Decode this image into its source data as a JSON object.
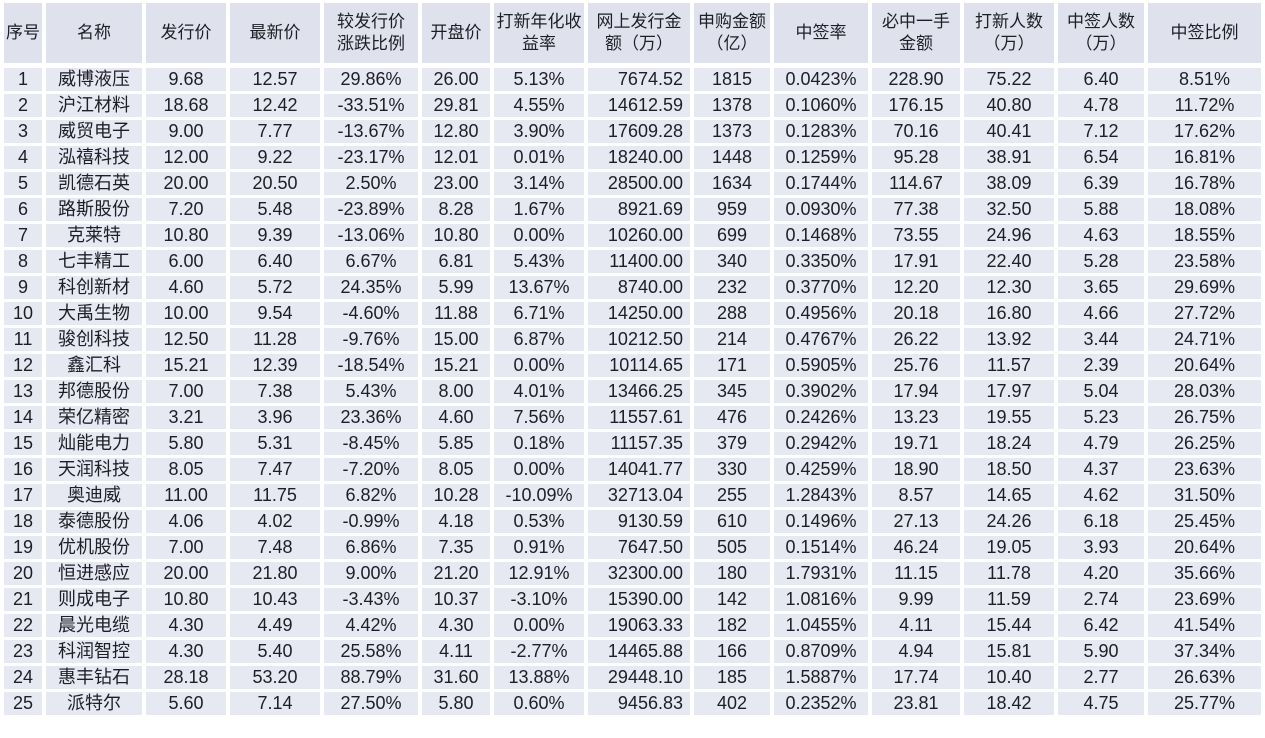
{
  "colors": {
    "cell_bg": "#e6e8f2",
    "header_bg": "#dfe1ec",
    "grid": "#ffffff",
    "text": "#1e1e26"
  },
  "table": {
    "columns": [
      {
        "key": "index",
        "label": "序号",
        "align": "center"
      },
      {
        "key": "name",
        "label": "名称",
        "align": "center"
      },
      {
        "key": "issue-price",
        "label": "发行价",
        "align": "center"
      },
      {
        "key": "latest-price",
        "label": "最新价",
        "align": "center"
      },
      {
        "key": "change-vs-issue",
        "label": "较发行价\n涨跌比例",
        "align": "center"
      },
      {
        "key": "open-price",
        "label": "开盘价",
        "align": "center"
      },
      {
        "key": "annualized-return",
        "label": "打新年化收\n益率",
        "align": "center"
      },
      {
        "key": "online-issue-amount",
        "label": "网上发行金\n额（万）",
        "align": "right"
      },
      {
        "key": "subscription-amount",
        "label": "申购金额\n（亿）",
        "align": "center"
      },
      {
        "key": "winning-rate",
        "label": "中签率",
        "align": "center"
      },
      {
        "key": "sure-win-amount",
        "label": "必中一手\n金额",
        "align": "center"
      },
      {
        "key": "participants",
        "label": "打新人数\n（万）",
        "align": "center"
      },
      {
        "key": "winners",
        "label": "中签人数\n（万）",
        "align": "center"
      },
      {
        "key": "winning-ratio",
        "label": "中签比例",
        "align": "center"
      }
    ],
    "rows": [
      [
        "1",
        "威博液压",
        "9.68",
        "12.57",
        "29.86%",
        "26.00",
        "5.13%",
        "7674.52",
        "1815",
        "0.0423%",
        "228.90",
        "75.22",
        "6.40",
        "8.51%"
      ],
      [
        "2",
        "沪江材料",
        "18.68",
        "12.42",
        "-33.51%",
        "29.81",
        "4.55%",
        "14612.59",
        "1378",
        "0.1060%",
        "176.15",
        "40.80",
        "4.78",
        "11.72%"
      ],
      [
        "3",
        "威贸电子",
        "9.00",
        "7.77",
        "-13.67%",
        "12.80",
        "3.90%",
        "17609.28",
        "1373",
        "0.1283%",
        "70.16",
        "40.41",
        "7.12",
        "17.62%"
      ],
      [
        "4",
        "泓禧科技",
        "12.00",
        "9.22",
        "-23.17%",
        "12.01",
        "0.01%",
        "18240.00",
        "1448",
        "0.1259%",
        "95.28",
        "38.91",
        "6.54",
        "16.81%"
      ],
      [
        "5",
        "凯德石英",
        "20.00",
        "20.50",
        "2.50%",
        "23.00",
        "3.14%",
        "28500.00",
        "1634",
        "0.1744%",
        "114.67",
        "38.09",
        "6.39",
        "16.78%"
      ],
      [
        "6",
        "路斯股份",
        "7.20",
        "5.48",
        "-23.89%",
        "8.28",
        "1.67%",
        "8921.69",
        "959",
        "0.0930%",
        "77.38",
        "32.50",
        "5.88",
        "18.08%"
      ],
      [
        "7",
        "克莱特",
        "10.80",
        "9.39",
        "-13.06%",
        "10.80",
        "0.00%",
        "10260.00",
        "699",
        "0.1468%",
        "73.55",
        "24.96",
        "4.63",
        "18.55%"
      ],
      [
        "8",
        "七丰精工",
        "6.00",
        "6.40",
        "6.67%",
        "6.81",
        "5.43%",
        "11400.00",
        "340",
        "0.3350%",
        "17.91",
        "22.40",
        "5.28",
        "23.58%"
      ],
      [
        "9",
        "科创新材",
        "4.60",
        "5.72",
        "24.35%",
        "5.99",
        "13.67%",
        "8740.00",
        "232",
        "0.3770%",
        "12.20",
        "12.30",
        "3.65",
        "29.69%"
      ],
      [
        "10",
        "大禹生物",
        "10.00",
        "9.54",
        "-4.60%",
        "11.88",
        "6.71%",
        "14250.00",
        "288",
        "0.4956%",
        "20.18",
        "16.80",
        "4.66",
        "27.72%"
      ],
      [
        "11",
        "骏创科技",
        "12.50",
        "11.28",
        "-9.76%",
        "15.00",
        "6.87%",
        "10212.50",
        "214",
        "0.4767%",
        "26.22",
        "13.92",
        "3.44",
        "24.71%"
      ],
      [
        "12",
        "鑫汇科",
        "15.21",
        "12.39",
        "-18.54%",
        "15.21",
        "0.00%",
        "10114.65",
        "171",
        "0.5905%",
        "25.76",
        "11.57",
        "2.39",
        "20.64%"
      ],
      [
        "13",
        "邦德股份",
        "7.00",
        "7.38",
        "5.43%",
        "8.00",
        "4.01%",
        "13466.25",
        "345",
        "0.3902%",
        "17.94",
        "17.97",
        "5.04",
        "28.03%"
      ],
      [
        "14",
        "荣亿精密",
        "3.21",
        "3.96",
        "23.36%",
        "4.60",
        "7.56%",
        "11557.61",
        "476",
        "0.2426%",
        "13.23",
        "19.55",
        "5.23",
        "26.75%"
      ],
      [
        "15",
        "灿能电力",
        "5.80",
        "5.31",
        "-8.45%",
        "5.85",
        "0.18%",
        "11157.35",
        "379",
        "0.2942%",
        "19.71",
        "18.24",
        "4.79",
        "26.25%"
      ],
      [
        "16",
        "天润科技",
        "8.05",
        "7.47",
        "-7.20%",
        "8.05",
        "0.00%",
        "14041.77",
        "330",
        "0.4259%",
        "18.90",
        "18.50",
        "4.37",
        "23.63%"
      ],
      [
        "17",
        "奥迪威",
        "11.00",
        "11.75",
        "6.82%",
        "10.28",
        "-10.09%",
        "32713.04",
        "255",
        "1.2843%",
        "8.57",
        "14.65",
        "4.62",
        "31.50%"
      ],
      [
        "18",
        "泰德股份",
        "4.06",
        "4.02",
        "-0.99%",
        "4.18",
        "0.53%",
        "9130.59",
        "610",
        "0.1496%",
        "27.13",
        "24.26",
        "6.18",
        "25.45%"
      ],
      [
        "19",
        "优机股份",
        "7.00",
        "7.48",
        "6.86%",
        "7.35",
        "0.91%",
        "7647.50",
        "505",
        "0.1514%",
        "46.24",
        "19.05",
        "3.93",
        "20.64%"
      ],
      [
        "20",
        "恒进感应",
        "20.00",
        "21.80",
        "9.00%",
        "21.20",
        "12.91%",
        "32300.00",
        "180",
        "1.7931%",
        "11.15",
        "11.78",
        "4.20",
        "35.66%"
      ],
      [
        "21",
        "则成电子",
        "10.80",
        "10.43",
        "-3.43%",
        "10.37",
        "-3.10%",
        "15390.00",
        "142",
        "1.0816%",
        "9.99",
        "11.59",
        "2.74",
        "23.69%"
      ],
      [
        "22",
        "晨光电缆",
        "4.30",
        "4.49",
        "4.42%",
        "4.30",
        "0.00%",
        "19063.33",
        "182",
        "1.0455%",
        "4.11",
        "15.44",
        "6.42",
        "41.54%"
      ],
      [
        "23",
        "科润智控",
        "4.30",
        "5.40",
        "25.58%",
        "4.11",
        "-2.77%",
        "14465.88",
        "166",
        "0.8709%",
        "4.94",
        "15.81",
        "5.90",
        "37.34%"
      ],
      [
        "24",
        "惠丰钻石",
        "28.18",
        "53.20",
        "88.79%",
        "31.60",
        "13.88%",
        "29448.10",
        "185",
        "1.5887%",
        "17.74",
        "10.40",
        "2.77",
        "26.63%"
      ],
      [
        "25",
        "派特尔",
        "5.60",
        "7.14",
        "27.50%",
        "5.80",
        "0.60%",
        "9456.83",
        "402",
        "0.2352%",
        "23.81",
        "18.42",
        "4.75",
        "25.77%"
      ]
    ]
  }
}
